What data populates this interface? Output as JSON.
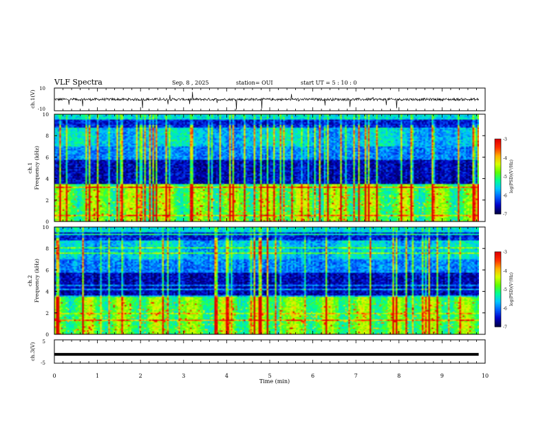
{
  "header": {
    "title": "VLF Spectra",
    "date": "Sep. 8 , 2025",
    "station": "station= OUI",
    "start": "start UT = 5 : 10 : 0"
  },
  "chart_data": [
    {
      "id": "ch1-waveform",
      "type": "line",
      "ylabel": "ch.1(V)",
      "ylim": [
        -10,
        10
      ],
      "yticks": [
        "10",
        "-10"
      ],
      "xlim": [
        0,
        10
      ],
      "baseline": 0,
      "note_samples": "noisy trace around 0 V with brief spikes"
    },
    {
      "id": "ch1-spectrogram",
      "type": "heatmap",
      "ylabel": "ch.1",
      "ylabel2": "Frequency (kHz)",
      "ylim": [
        0,
        10
      ],
      "yticks": [
        "0",
        "2",
        "4",
        "6",
        "8",
        "10"
      ],
      "xlim": [
        0,
        9.85
      ],
      "colorbar": {
        "label": "log(PSD)(V²/Hz)",
        "range": [
          -7,
          -3
        ],
        "ticks": [
          "-3",
          "-4",
          "-5",
          "-6",
          "-7"
        ]
      }
    },
    {
      "id": "ch2-spectrogram",
      "type": "heatmap",
      "ylabel": "ch.2",
      "ylabel2": "Frequency (kHz)",
      "ylim": [
        0,
        10
      ],
      "yticks": [
        "0",
        "2",
        "4",
        "6",
        "8",
        "10"
      ],
      "xlim": [
        0,
        9.85
      ],
      "colorbar": {
        "label": "log(PSD)(V²/Hz)",
        "range": [
          -7,
          -3
        ],
        "ticks": [
          "-3",
          "-4",
          "-5",
          "-6",
          "-7"
        ]
      }
    },
    {
      "id": "ch3-waveform",
      "type": "line",
      "ylabel": "ch.3(V)",
      "ylim": [
        -5,
        5
      ],
      "yticks": [
        "5",
        "-5"
      ],
      "xlim": [
        0,
        10
      ],
      "level": -1.2
    }
  ],
  "xaxis": {
    "label": "Time (min)",
    "ticks": [
      "0",
      "1",
      "2",
      "3",
      "4",
      "5",
      "6",
      "7",
      "8",
      "9",
      "10"
    ]
  },
  "colors": {
    "axis": "#000000",
    "colormap": [
      "#00004a",
      "#0000c8",
      "#0060ff",
      "#00c8ff",
      "#00ff90",
      "#60ff00",
      "#d8ff00",
      "#ffb000",
      "#ff3000",
      "#e00000",
      "#ffffff"
    ]
  }
}
